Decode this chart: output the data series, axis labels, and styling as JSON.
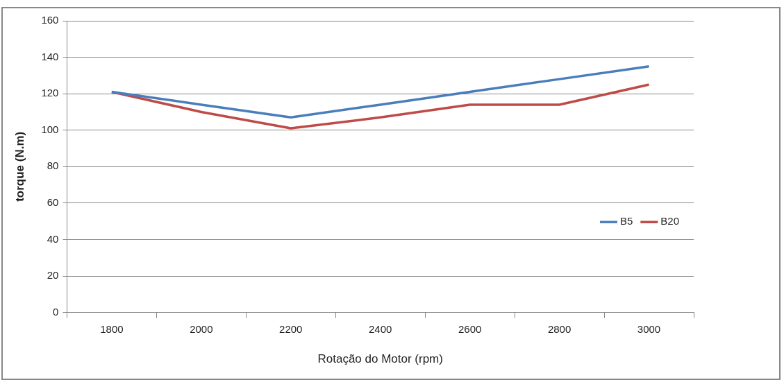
{
  "chart_data": {
    "type": "line",
    "xlabel": "Rotação do Motor (rpm)",
    "ylabel": "torque (N.m)",
    "categories": [
      "1800",
      "2000",
      "2200",
      "2400",
      "2600",
      "2800",
      "3000"
    ],
    "series": [
      {
        "name": "B5",
        "color": "#4a7ebb",
        "values": [
          121,
          114,
          107,
          114,
          121,
          128,
          135
        ]
      },
      {
        "name": "B20",
        "color": "#be4b48",
        "values": [
          121,
          110,
          101,
          107,
          114,
          114,
          125
        ]
      }
    ],
    "ylim": [
      0,
      160
    ],
    "yticks": [
      0,
      20,
      40,
      60,
      80,
      100,
      120,
      140,
      160
    ],
    "grid": "y",
    "legend": "right",
    "marker": "none",
    "line_style": "solid"
  }
}
